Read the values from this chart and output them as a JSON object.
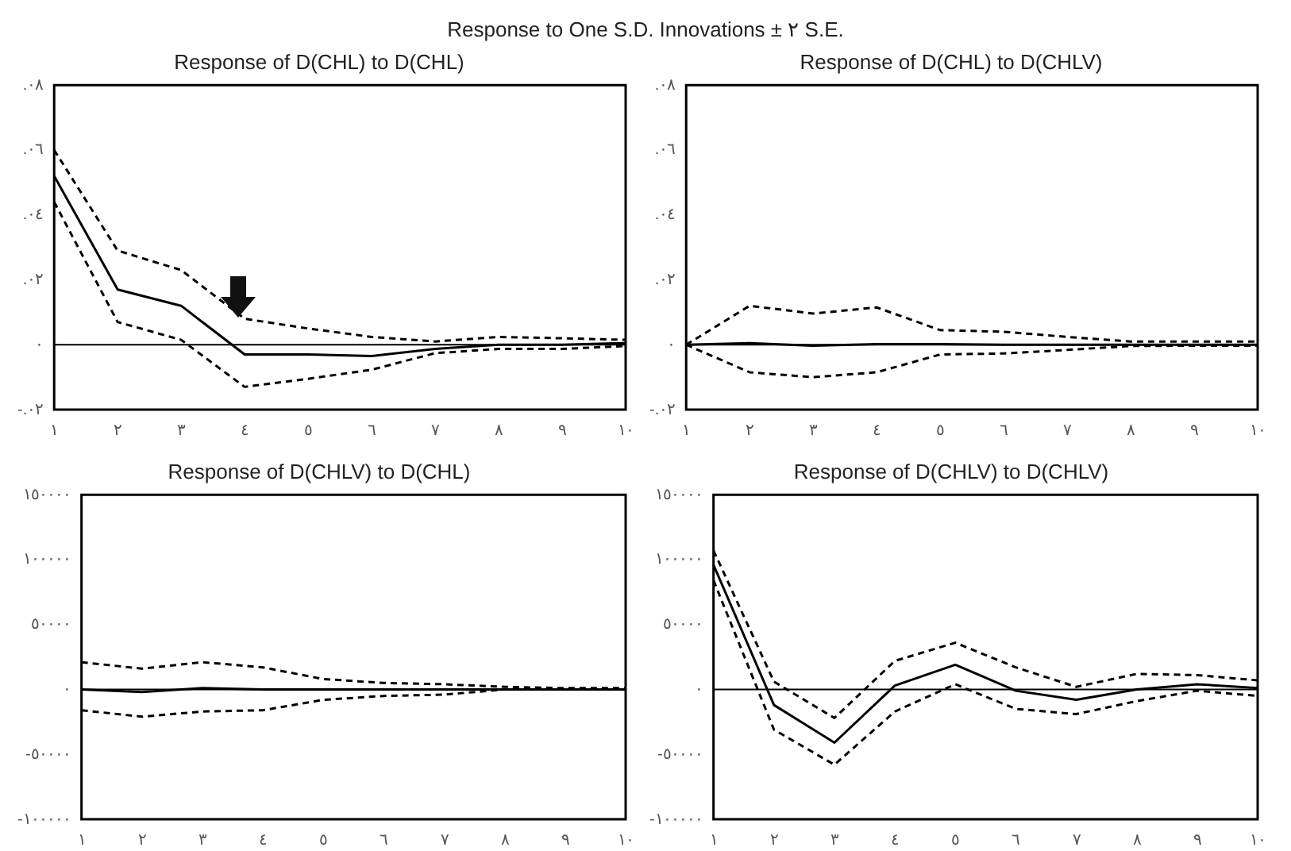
{
  "chart_data": [
    {
      "type": "line",
      "title": "Response of D(CHL) to D(CHL)",
      "annotations": [
        "Response to One S.D. Innovations ± ٢ S.E."
      ],
      "x": [
        1,
        2,
        3,
        4,
        5,
        6,
        7,
        8,
        9,
        10
      ],
      "xlim": [
        1,
        10
      ],
      "xticks": [
        {
          "value": 1,
          "label": "١"
        },
        {
          "value": 2,
          "label": "٢"
        },
        {
          "value": 3,
          "label": "٣"
        },
        {
          "value": 4,
          "label": "٤"
        },
        {
          "value": 5,
          "label": "٥"
        },
        {
          "value": 6,
          "label": "٦"
        },
        {
          "value": 7,
          "label": "٧"
        },
        {
          "value": 8,
          "label": "٨"
        },
        {
          "value": 9,
          "label": "٩"
        },
        {
          "value": 10,
          "label": "١٠"
        }
      ],
      "ylim": [
        -0.02,
        0.08
      ],
      "yticks": [
        {
          "value": -0.02,
          "label": "-.٠٢"
        },
        {
          "value": 0,
          "label": "٠"
        },
        {
          "value": 0.02,
          "label": ".٠٢"
        },
        {
          "value": 0.04,
          "label": ".٠٤"
        },
        {
          "value": 0.06,
          "label": ".٠٦"
        },
        {
          "value": 0.08,
          "label": ".٠٨"
        }
      ],
      "grid": false,
      "legend": false,
      "marker": "none",
      "ref_lines": [
        {
          "axis": "y",
          "value": 0,
          "color": "#000000"
        }
      ],
      "series": [
        {
          "color": "#000000",
          "line_style": "solid",
          "values": [
            0.052,
            0.017,
            0.012,
            -0.003,
            -0.003,
            -0.0035,
            -0.0013,
            0,
            0,
            0.0005
          ]
        },
        {
          "color": "#000000",
          "line_style": "dashed",
          "values": [
            0.06,
            0.029,
            0.023,
            0.008,
            0.005,
            0.0024,
            0.001,
            0.0024,
            0.002,
            0.0015
          ]
        },
        {
          "color": "#000000",
          "line_style": "dashed",
          "values": [
            0.044,
            0.007,
            0.0015,
            -0.013,
            -0.0105,
            -0.0077,
            -0.0026,
            -0.0013,
            -0.0013,
            -0.0004
          ]
        }
      ]
    },
    {
      "type": "line",
      "title": "Response of D(CHL) to D(CHLV)",
      "x": [
        1,
        2,
        3,
        4,
        5,
        6,
        7,
        8,
        9,
        10
      ],
      "xlim": [
        1,
        10
      ],
      "xticks": [
        {
          "value": 1,
          "label": "١"
        },
        {
          "value": 2,
          "label": "٢"
        },
        {
          "value": 3,
          "label": "٣"
        },
        {
          "value": 4,
          "label": "٤"
        },
        {
          "value": 5,
          "label": "٥"
        },
        {
          "value": 6,
          "label": "٦"
        },
        {
          "value": 7,
          "label": "٧"
        },
        {
          "value": 8,
          "label": "٨"
        },
        {
          "value": 9,
          "label": "٩"
        },
        {
          "value": 10,
          "label": "١٠"
        }
      ],
      "ylim": [
        -0.02,
        0.08
      ],
      "yticks": [
        {
          "value": -0.02,
          "label": "-.٠٢"
        },
        {
          "value": 0,
          "label": "٠"
        },
        {
          "value": 0.02,
          "label": ".٠٢"
        },
        {
          "value": 0.04,
          "label": ".٠٤"
        },
        {
          "value": 0.06,
          "label": ".٠٦"
        },
        {
          "value": 0.08,
          "label": ".٠٨"
        }
      ],
      "grid": false,
      "legend": false,
      "marker": "none",
      "ref_lines": [
        {
          "axis": "y",
          "value": 0,
          "color": "#000000"
        }
      ],
      "series": [
        {
          "color": "#000000",
          "line_style": "solid",
          "values": [
            0,
            0.0005,
            -0.0003,
            0.0002,
            0.0002,
            0,
            0,
            0,
            0,
            0
          ]
        },
        {
          "color": "#000000",
          "line_style": "dashed",
          "values": [
            0,
            0.012,
            0.0096,
            0.0115,
            0.0045,
            0.004,
            0.0024,
            0.001,
            0.001,
            0.001
          ]
        },
        {
          "color": "#000000",
          "line_style": "dashed",
          "values": [
            0,
            -0.0085,
            -0.01,
            -0.0085,
            -0.003,
            -0.0027,
            -0.0016,
            -0.0004,
            -0.0003,
            -0.0003
          ]
        }
      ]
    },
    {
      "type": "line",
      "title": "Response of D(CHLV) to D(CHL)",
      "x": [
        1,
        2,
        3,
        4,
        5,
        6,
        7,
        8,
        9,
        10
      ],
      "xlim": [
        1,
        10
      ],
      "xticks": [
        {
          "value": 1,
          "label": "١"
        },
        {
          "value": 2,
          "label": "٢"
        },
        {
          "value": 3,
          "label": "٣"
        },
        {
          "value": 4,
          "label": "٤"
        },
        {
          "value": 5,
          "label": "٥"
        },
        {
          "value": 6,
          "label": "٦"
        },
        {
          "value": 7,
          "label": "٧"
        },
        {
          "value": 8,
          "label": "٨"
        },
        {
          "value": 9,
          "label": "٩"
        },
        {
          "value": 10,
          "label": "١٠"
        }
      ],
      "ylim": [
        -100000,
        150000
      ],
      "yticks": [
        {
          "value": -100000,
          "label": "-١٠٠٠٠٠"
        },
        {
          "value": -50000,
          "label": "-٥٠٠٠٠"
        },
        {
          "value": 0,
          "label": "٠"
        },
        {
          "value": 50000,
          "label": "٥٠٠٠٠"
        },
        {
          "value": 100000,
          "label": "١٠٠٠٠٠"
        },
        {
          "value": 150000,
          "label": "١٥٠٠٠٠"
        }
      ],
      "grid": false,
      "legend": false,
      "marker": "none",
      "ref_lines": [
        {
          "axis": "y",
          "value": 0,
          "color": "#000000"
        }
      ],
      "series": [
        {
          "color": "#000000",
          "line_style": "solid",
          "values": [
            0,
            -2000,
            1000,
            0,
            0,
            0,
            0,
            0,
            0,
            0
          ]
        },
        {
          "color": "#000000",
          "line_style": "dashed",
          "values": [
            21000,
            16000,
            21000,
            17000,
            8000,
            5000,
            4000,
            2000,
            1000,
            1000
          ]
        },
        {
          "color": "#000000",
          "line_style": "dashed",
          "values": [
            -16000,
            -21000,
            -17000,
            -16000,
            -8000,
            -5000,
            -4000,
            0,
            0,
            0
          ]
        }
      ]
    },
    {
      "type": "line",
      "title": "Response of D(CHLV) to D(CHLV)",
      "x": [
        1,
        2,
        3,
        4,
        5,
        6,
        7,
        8,
        9,
        10
      ],
      "xlim": [
        1,
        10
      ],
      "xticks": [
        {
          "value": 1,
          "label": "١"
        },
        {
          "value": 2,
          "label": "٢"
        },
        {
          "value": 3,
          "label": "٣"
        },
        {
          "value": 4,
          "label": "٤"
        },
        {
          "value": 5,
          "label": "٥"
        },
        {
          "value": 6,
          "label": "٦"
        },
        {
          "value": 7,
          "label": "٧"
        },
        {
          "value": 8,
          "label": "٨"
        },
        {
          "value": 9,
          "label": "٩"
        },
        {
          "value": 10,
          "label": "١٠"
        }
      ],
      "ylim": [
        -100000,
        150000
      ],
      "yticks": [
        {
          "value": -100000,
          "label": "-١٠٠٠٠٠"
        },
        {
          "value": -50000,
          "label": "-٥٠٠٠٠"
        },
        {
          "value": 0,
          "label": "٠"
        },
        {
          "value": 50000,
          "label": "٥٠٠٠٠"
        },
        {
          "value": 100000,
          "label": "١٠٠٠٠٠"
        },
        {
          "value": 150000,
          "label": "١٥٠٠٠٠"
        }
      ],
      "grid": false,
      "legend": false,
      "marker": "none",
      "ref_lines": [
        {
          "axis": "y",
          "value": 0,
          "color": "#000000"
        }
      ],
      "series": [
        {
          "color": "#000000",
          "line_style": "solid",
          "values": [
            96000,
            -12000,
            -41000,
            3000,
            19000,
            -1000,
            -8000,
            0,
            4000,
            1000
          ]
        },
        {
          "color": "#000000",
          "line_style": "dashed",
          "values": [
            107000,
            6000,
            -22000,
            22000,
            36000,
            17000,
            2000,
            12000,
            11000,
            7000
          ]
        },
        {
          "color": "#000000",
          "line_style": "dashed",
          "values": [
            84000,
            -31000,
            -58000,
            -17000,
            4000,
            -15000,
            -19000,
            -9000,
            -1000,
            -5000
          ]
        }
      ]
    }
  ]
}
